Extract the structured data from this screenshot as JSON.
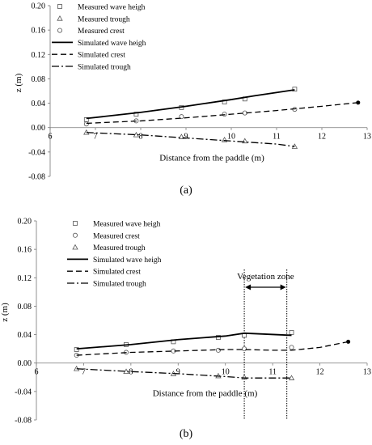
{
  "chart_data": [
    {
      "type": "line",
      "panel_label": "(a)",
      "xlabel": "Distance from the paddle (m)",
      "ylabel": "z (m)",
      "xlim": [
        6,
        13
      ],
      "ylim": [
        -0.08,
        0.2
      ],
      "x_ticks": [
        "6",
        "7",
        "8",
        "9",
        "10",
        "11",
        "12",
        "13"
      ],
      "y_ticks": [
        "0.20",
        "0.16",
        "0.12",
        "0.08",
        "0.04",
        "0.00",
        "-0.04",
        "-0.08"
      ],
      "grid": false,
      "legend_position": "top-left",
      "series": [
        {
          "name": "Measured wave heigh",
          "style": "marker",
          "marker": "square",
          "x": [
            6.8,
            7.9,
            8.9,
            9.85,
            10.3,
            11.4
          ],
          "y": [
            0.013,
            0.022,
            0.033,
            0.042,
            0.047,
            0.063
          ]
        },
        {
          "name": "Measured trough",
          "style": "marker",
          "marker": "triangle",
          "x": [
            6.8,
            7.9,
            8.9,
            9.85,
            10.3,
            11.4
          ],
          "y": [
            -0.008,
            -0.012,
            -0.015,
            -0.02,
            -0.022,
            -0.031
          ]
        },
        {
          "name": "Measured crest",
          "style": "marker",
          "marker": "circle",
          "x": [
            6.8,
            7.9,
            8.9,
            9.85,
            10.3,
            11.4
          ],
          "y": [
            0.006,
            0.011,
            0.018,
            0.022,
            0.024,
            0.03
          ]
        },
        {
          "name": "Simulated wave heigh",
          "style": "solid",
          "x": [
            6.8,
            8,
            9,
            10,
            10.5,
            11.4
          ],
          "y": [
            0.015,
            0.025,
            0.035,
            0.046,
            0.052,
            0.062
          ]
        },
        {
          "name": "Simulated crest",
          "style": "dashed",
          "x": [
            6.8,
            8,
            9,
            10,
            11,
            12,
            12.8
          ],
          "y": [
            0.007,
            0.011,
            0.016,
            0.022,
            0.028,
            0.035,
            0.041
          ]
        },
        {
          "name": "Simulated trough",
          "style": "dashdot",
          "x": [
            6.8,
            8,
            9,
            10,
            11,
            11.4
          ],
          "y": [
            -0.008,
            -0.012,
            -0.017,
            -0.022,
            -0.027,
            -0.031
          ]
        }
      ],
      "end_dot": {
        "x": 12.8,
        "y": 0.041
      }
    },
    {
      "type": "line",
      "panel_label": "(b)",
      "xlabel": "Distance from the paddle (m)",
      "ylabel": "z (m)",
      "xlim": [
        6,
        13
      ],
      "ylim": [
        -0.08,
        0.2
      ],
      "x_ticks": [
        "6",
        "7",
        "8",
        "9",
        "10",
        "11",
        "12",
        "13"
      ],
      "y_ticks": [
        "0.20",
        "0.16",
        "0.12",
        "0.08",
        "0.04",
        "0.00",
        "-0.04",
        "-0.08"
      ],
      "grid": false,
      "legend_position": "top-left",
      "series": [
        {
          "name": "Measured wave heigh",
          "style": "marker",
          "marker": "square",
          "x": [
            6.85,
            7.9,
            8.9,
            9.85,
            10.4,
            11.4
          ],
          "y": [
            0.019,
            0.026,
            0.03,
            0.036,
            0.039,
            0.043
          ]
        },
        {
          "name": "Measured crest",
          "style": "marker",
          "marker": "circle",
          "x": [
            6.85,
            7.9,
            8.9,
            9.85,
            10.4,
            11.4
          ],
          "y": [
            0.011,
            0.015,
            0.017,
            0.018,
            0.02,
            0.022
          ]
        },
        {
          "name": "Measured trough",
          "style": "marker",
          "marker": "triangle",
          "x": [
            6.85,
            7.9,
            8.9,
            9.85,
            10.4,
            11.4
          ],
          "y": [
            -0.008,
            -0.012,
            -0.015,
            -0.018,
            -0.02,
            -0.021
          ]
        },
        {
          "name": "Simulated wave heigh",
          "style": "solid",
          "x": [
            6.85,
            8,
            9,
            10,
            10.4,
            11.4
          ],
          "y": [
            0.02,
            0.026,
            0.033,
            0.038,
            0.042,
            0.039
          ]
        },
        {
          "name": "Simulated crest",
          "style": "dashed",
          "x": [
            6.85,
            8,
            9,
            10,
            10.4,
            11,
            11.4,
            12,
            12.6
          ],
          "y": [
            0.011,
            0.015,
            0.017,
            0.019,
            0.019,
            0.018,
            0.018,
            0.022,
            0.03
          ]
        },
        {
          "name": "Simulated trough",
          "style": "dashdot",
          "x": [
            6.85,
            8,
            9,
            10,
            10.4,
            11.4
          ],
          "y": [
            -0.008,
            -0.012,
            -0.015,
            -0.019,
            -0.021,
            -0.021
          ]
        }
      ],
      "end_dot": {
        "x": 12.6,
        "y": 0.03
      },
      "annotation": {
        "text": "Vegetation zone",
        "x_start": 10.4,
        "x_end": 11.3
      }
    }
  ]
}
